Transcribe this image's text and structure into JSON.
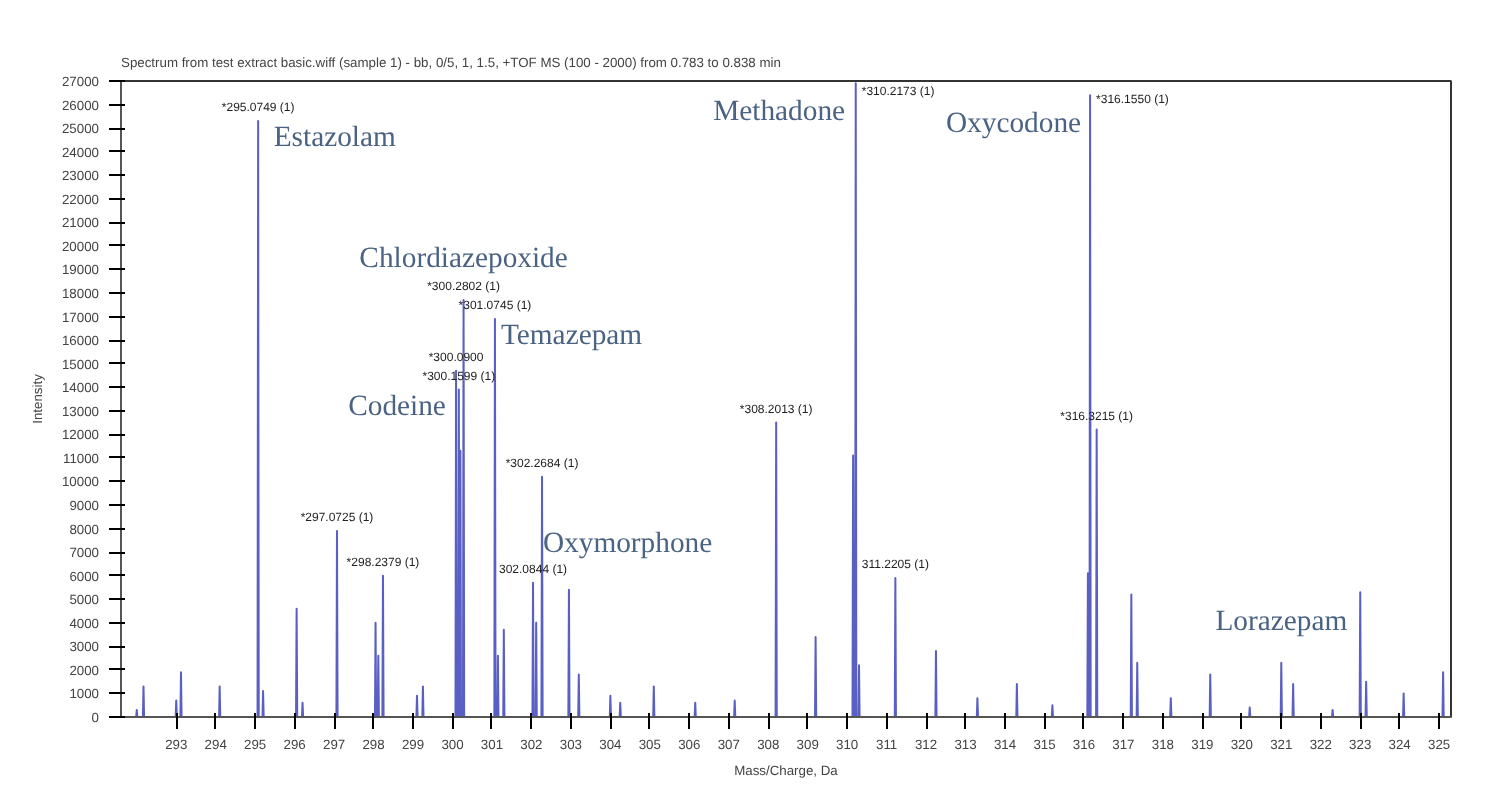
{
  "chart_data": {
    "type": "line",
    "title": "Spectrum from test extract basic.wiff (sample 1) - bb, 0/5, 1, 1.5, +TOF MS (100 - 2000) from 0.783 to 0.838 min",
    "xlabel": "Mass/Charge, Da",
    "ylabel": "Intensity",
    "xlim": [
      291.6,
      325.3
    ],
    "ylim": [
      0,
      27000
    ],
    "xticks": [
      293,
      294,
      295,
      296,
      297,
      298,
      299,
      300,
      301,
      302,
      303,
      304,
      305,
      306,
      307,
      308,
      309,
      310,
      311,
      312,
      313,
      314,
      315,
      316,
      317,
      318,
      319,
      320,
      321,
      322,
      323,
      324,
      325
    ],
    "yticks": [
      0,
      1000,
      2000,
      3000,
      4000,
      5000,
      6000,
      7000,
      8000,
      9000,
      10000,
      11000,
      12000,
      13000,
      14000,
      15000,
      16000,
      17000,
      18000,
      19000,
      20000,
      21000,
      22000,
      23000,
      24000,
      25000,
      26000,
      27000
    ],
    "grid": false,
    "marker": "none",
    "line_style": "solid",
    "series": [
      {
        "color": "#5a5fc4",
        "x": [
          291.7,
          291.985,
          292.0,
          292.015,
          292.155,
          292.17,
          292.185,
          292.985,
          293.0,
          293.015,
          293.105,
          293.12,
          293.135,
          294.085,
          294.1,
          294.115,
          295.06,
          295.075,
          295.09,
          295.185,
          295.2,
          295.215,
          296.035,
          296.05,
          296.065,
          296.185,
          296.2,
          296.215,
          297.058,
          297.073,
          297.088,
          298.035,
          298.05,
          298.065,
          298.105,
          298.12,
          298.135,
          298.223,
          298.238,
          298.253,
          299.085,
          299.1,
          299.115,
          299.235,
          299.25,
          299.265,
          300.075,
          300.09,
          300.105,
          300.145,
          300.16,
          300.175,
          300.185,
          300.2,
          300.215,
          300.265,
          300.28,
          300.295,
          301.06,
          301.075,
          301.09,
          301.135,
          301.15,
          301.165,
          301.285,
          301.3,
          301.315,
          302.025,
          302.04,
          302.055,
          302.105,
          302.12,
          302.135,
          302.253,
          302.268,
          302.283,
          302.935,
          302.95,
          302.965,
          303.185,
          303.2,
          303.215,
          303.985,
          304.0,
          304.015,
          304.235,
          304.25,
          304.265,
          305.085,
          305.1,
          305.115,
          306.135,
          306.15,
          306.165,
          307.135,
          307.15,
          307.165,
          308.186,
          308.201,
          308.216,
          309.185,
          309.2,
          309.215,
          310.135,
          310.15,
          310.165,
          310.202,
          310.217,
          310.232,
          310.285,
          310.3,
          310.315,
          311.206,
          311.221,
          311.236,
          312.235,
          312.25,
          312.265,
          313.285,
          313.3,
          313.315,
          314.285,
          314.3,
          314.315,
          315.185,
          315.2,
          315.215,
          316.085,
          316.1,
          316.115,
          316.14,
          316.155,
          316.17,
          316.307,
          316.322,
          316.337,
          317.185,
          317.2,
          317.215,
          317.335,
          317.35,
          317.365,
          318.185,
          318.2,
          318.215,
          319.185,
          319.2,
          319.215,
          320.185,
          320.2,
          320.215,
          320.985,
          321.0,
          321.015,
          321.285,
          321.3,
          321.315,
          322.285,
          322.3,
          322.315,
          322.985,
          323.0,
          323.015,
          323.135,
          323.15,
          323.165,
          324.085,
          324.1,
          324.115,
          325.085,
          325.1,
          325.115,
          325.2
        ],
        "values": [
          0,
          0,
          300,
          0,
          0,
          1300,
          0,
          0,
          700,
          0,
          0,
          1900,
          0,
          0,
          1300,
          0,
          0,
          25300,
          0,
          0,
          1100,
          0,
          0,
          4600,
          0,
          0,
          600,
          0,
          0,
          7900,
          0,
          0,
          4000,
          0,
          0,
          2600,
          0,
          0,
          6000,
          0,
          0,
          900,
          0,
          0,
          1300,
          0,
          0,
          14700,
          0,
          0,
          13900,
          0,
          0,
          11300,
          0,
          0,
          17700,
          0,
          0,
          16900,
          0,
          0,
          2600,
          0,
          0,
          3700,
          0,
          0,
          5700,
          0,
          0,
          4000,
          0,
          0,
          10200,
          0,
          0,
          5400,
          0,
          0,
          1800,
          0,
          0,
          900,
          0,
          0,
          600,
          0,
          0,
          1300,
          0,
          0,
          600,
          0,
          0,
          700,
          0,
          0,
          12500,
          0,
          0,
          3400,
          0,
          0,
          11100,
          0,
          0,
          26900,
          0,
          0,
          2200,
          0,
          0,
          5900,
          0,
          0,
          2800,
          0,
          0,
          800,
          0,
          0,
          1400,
          0,
          0,
          500,
          0,
          0,
          6100,
          0,
          0,
          26400,
          0,
          0,
          12200,
          0,
          0,
          5200,
          0,
          0,
          2300,
          0,
          0,
          800,
          0,
          0,
          1800,
          0,
          0,
          400,
          0,
          0,
          2300,
          0,
          0,
          1400,
          0,
          0,
          300,
          0,
          0,
          5300,
          0,
          0,
          1500,
          0,
          0,
          1000,
          0,
          0,
          1900,
          0,
          0
        ]
      }
    ],
    "annotations": [
      {
        "text": "*295.0749 (1)",
        "x": 295.075,
        "y": 25300
      },
      {
        "text": "*297.0725 (1)",
        "x": 297.073,
        "y": 7900
      },
      {
        "text": "*298.2379 (1)",
        "x": 298.238,
        "y": 6000
      },
      {
        "text": "*300.0900",
        "x": 300.09,
        "y": 14700
      },
      {
        "text": "*300.1599 (1)",
        "x": 300.16,
        "y": 13900
      },
      {
        "text": "*300.2802 (1)",
        "x": 300.28,
        "y": 17700
      },
      {
        "text": "*301.0745 (1)",
        "x": 301.075,
        "y": 16900
      },
      {
        "text": "*302.2684 (1)",
        "x": 302.268,
        "y": 10200
      },
      {
        "text": "302.0844 (1)",
        "x": 302.04,
        "y": 5700
      },
      {
        "text": "*308.2013 (1)",
        "x": 308.201,
        "y": 12500
      },
      {
        "text": "*310.2173 (1)",
        "x": 310.217,
        "y": 26900
      },
      {
        "text": "311.2205 (1)",
        "x": 311.221,
        "y": 5900
      },
      {
        "text": "*316.1550 (1)",
        "x": 316.155,
        "y": 26400
      },
      {
        "text": "*316.3215 (1)",
        "x": 316.322,
        "y": 12200
      },
      {
        "text": "Estazolam",
        "x": 295.075,
        "y": 25300
      },
      {
        "text": "Methadone",
        "x": 310.217,
        "y": 26900
      },
      {
        "text": "Oxycodone",
        "x": 316.155,
        "y": 26400
      },
      {
        "text": "Chlordiazepoxide",
        "x": 300.28,
        "y": 17700
      },
      {
        "text": "Temazepam",
        "x": 301.075,
        "y": 16900
      },
      {
        "text": "Codeine",
        "x": 300.16,
        "y": 13900
      },
      {
        "text": "Oxymorphone",
        "x": 302.12,
        "y": 4000
      },
      {
        "text": "Lorazepam",
        "x": 321.0,
        "y": 2300
      }
    ]
  }
}
